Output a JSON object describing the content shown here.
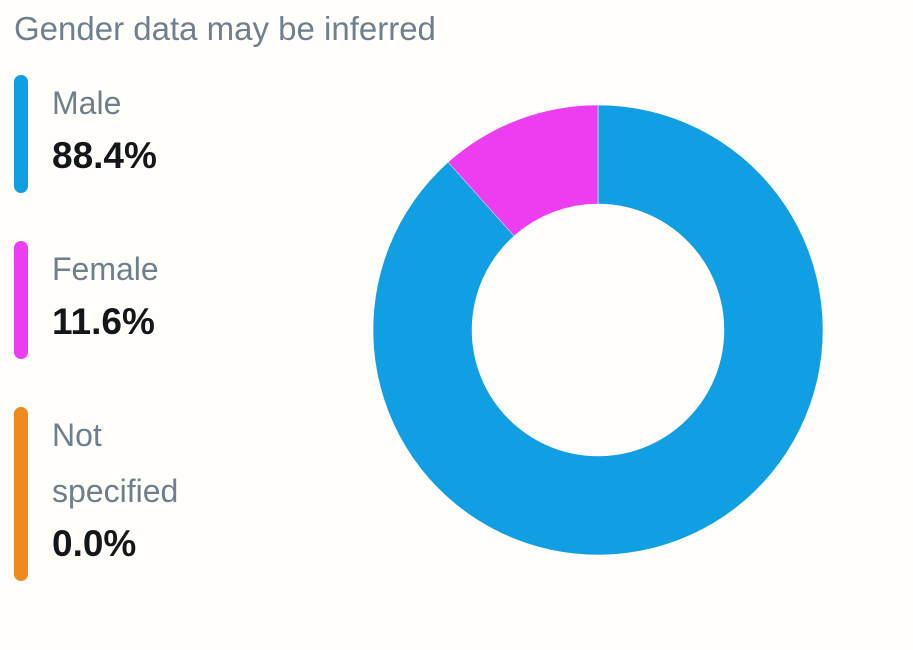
{
  "chart_data": {
    "type": "pie",
    "title": "Gender data may be inferred",
    "categories": [
      "Male",
      "Female",
      "Not specified"
    ],
    "values": [
      88.4,
      11.6,
      0.0
    ],
    "value_labels": [
      "88.4%",
      "11.6%",
      "0.0%"
    ],
    "colors": [
      "#119fe3",
      "#ec3ef0",
      "#ef8a1c"
    ],
    "donut": true
  }
}
